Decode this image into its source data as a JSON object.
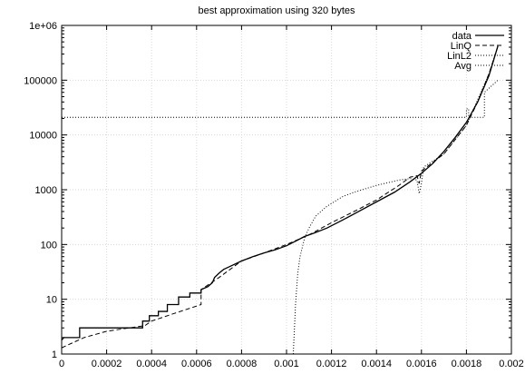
{
  "chart_data": {
    "type": "line",
    "title": "best approximation using 320 bytes",
    "xlabel": "",
    "ylabel": "",
    "xlim": [
      0,
      0.002
    ],
    "ylim": [
      1,
      1000000
    ],
    "yscale": "log",
    "grid": true,
    "legend_position": "top-right",
    "x_ticks": [
      "0",
      "0.0002",
      "0.0004",
      "0.0006",
      "0.0008",
      "0.001",
      "0.0012",
      "0.0014",
      "0.0016",
      "0.0018",
      "0.002"
    ],
    "x_tick_values": [
      0,
      0.0002,
      0.0004,
      0.0006,
      0.0008,
      0.001,
      0.0012,
      0.0014,
      0.0016,
      0.0018,
      0.002
    ],
    "y_ticks": [
      "1",
      "10",
      "100",
      "1000",
      "10000",
      "100000",
      "1e+06"
    ],
    "y_tick_values": [
      1,
      10,
      100,
      1000,
      10000,
      100000,
      1000000
    ],
    "series": [
      {
        "name": "data",
        "style": "solid",
        "x": [
          0,
          1e-05,
          8e-05,
          8e-05,
          0.00036,
          0.00036,
          0.00039,
          0.00039,
          0.00043,
          0.00043,
          0.00047,
          0.00047,
          0.00052,
          0.00052,
          0.00057,
          0.00057,
          0.00062,
          0.00062,
          0.00065,
          0.00067,
          0.00068,
          0.0007,
          0.00072,
          0.00075,
          0.0008,
          0.00085,
          0.0009,
          0.00095,
          0.001,
          0.00104,
          0.00108,
          0.00112,
          0.00118,
          0.00125,
          0.00132,
          0.0014,
          0.00148,
          0.00155,
          0.0016,
          0.00165,
          0.0017,
          0.00175,
          0.0018,
          0.00185,
          0.0019,
          0.00194
        ],
        "y": [
          1.8,
          2.0,
          2.0,
          3.0,
          3.0,
          4.0,
          4.0,
          5.0,
          5.0,
          6.0,
          6.0,
          8.0,
          8.0,
          11.0,
          11.0,
          13.0,
          13.0,
          15.0,
          17,
          20,
          25,
          30,
          35,
          40,
          50,
          60,
          70,
          80,
          95,
          115,
          140,
          160,
          200,
          280,
          400,
          600,
          900,
          1400,
          2000,
          3000,
          5000,
          9000,
          17000,
          40000,
          120000,
          420000
        ]
      },
      {
        "name": "LinQ",
        "style": "dashed",
        "x": [
          0,
          0.0001,
          0.0002,
          0.0003,
          0.00037,
          0.0004,
          0.0005,
          0.00062,
          0.00062,
          0.0007,
          0.0008,
          0.0009,
          0.001,
          0.0011,
          0.0012,
          0.0013,
          0.0014,
          0.0015,
          0.00155,
          0.00158,
          0.00159,
          0.0016,
          0.0017,
          0.0018,
          0.00185,
          0.0019,
          0.00194
        ],
        "y": [
          1.3,
          2.0,
          2.6,
          3.0,
          3.3,
          4.0,
          5.5,
          8.0,
          15.0,
          25,
          50,
          70,
          100,
          150,
          250,
          400,
          650,
          1200,
          1700,
          1800,
          1300,
          2200,
          4500,
          15000,
          40000,
          130000,
          420000
        ]
      },
      {
        "name": "LinL2",
        "style": "dotted",
        "x": [
          0.00103,
          0.00104,
          0.00105,
          0.00106,
          0.00108,
          0.0011,
          0.00113,
          0.00118,
          0.00125,
          0.0013,
          0.0014,
          0.0015,
          0.00155,
          0.00158,
          0.00159,
          0.0016,
          0.00161,
          0.0017,
          0.0018,
          0.0019,
          0.00194
        ],
        "y": [
          1,
          8,
          30,
          60,
          130,
          200,
          330,
          500,
          750,
          900,
          1200,
          1500,
          1600,
          1500,
          850,
          1300,
          2600,
          4500,
          15000,
          130000,
          420000
        ]
      },
      {
        "name": "Avg",
        "style": "dotted",
        "x": [
          0,
          0.0018,
          0.0018,
          0.00181,
          0.00181,
          0.00188,
          0.00188,
          0.00194
        ],
        "y": [
          21000,
          21000,
          30000,
          30000,
          21000,
          21000,
          60000,
          100000
        ]
      }
    ]
  }
}
